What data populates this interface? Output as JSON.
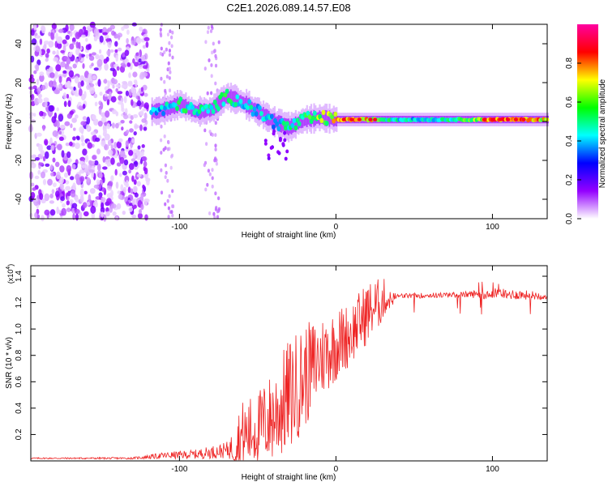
{
  "title": "C2E1.2026.089.14.57.E08",
  "chart_data": [
    {
      "type": "heatmap",
      "xlabel": "Height of straight line (km)",
      "ylabel": "Frequency (Hz)",
      "xlim": [
        -195,
        135
      ],
      "ylim": [
        -50,
        50
      ],
      "xticks": [
        -100,
        0,
        100
      ],
      "yticks": [
        -40,
        -20,
        0,
        20,
        40
      ],
      "colorbar": {
        "label": "Normalized spectral amplitude",
        "range": [
          0,
          1
        ],
        "ticks": [
          "0.0",
          "0.2",
          "0.4",
          "0.6",
          "0.8"
        ],
        "colors": [
          "#ffffff",
          "#9400ff",
          "#0000ff",
          "#00ffff",
          "#00ff00",
          "#ffff00",
          "#ff0000",
          "#ff00a0"
        ]
      },
      "noise_region_end_km": -120,
      "ridge": [
        {
          "x": -118,
          "y": 5,
          "amp": 0.45
        },
        {
          "x": -110,
          "y": 6,
          "amp": 0.5
        },
        {
          "x": -100,
          "y": 9,
          "amp": 0.6
        },
        {
          "x": -90,
          "y": 5,
          "amp": 0.55
        },
        {
          "x": -80,
          "y": 6,
          "amp": 0.55
        },
        {
          "x": -70,
          "y": 13,
          "amp": 0.6
        },
        {
          "x": -60,
          "y": 10,
          "amp": 0.55
        },
        {
          "x": -50,
          "y": 5,
          "amp": 0.5
        },
        {
          "x": -40,
          "y": 0,
          "amp": 0.5
        },
        {
          "x": -30,
          "y": -3,
          "amp": 0.55
        },
        {
          "x": -20,
          "y": 1,
          "amp": 0.65
        },
        {
          "x": -10,
          "y": 2,
          "amp": 0.7
        },
        {
          "x": 0,
          "y": 1,
          "amp": 0.85
        },
        {
          "x": 10,
          "y": 1,
          "amp": 0.9
        },
        {
          "x": 20,
          "y": 1,
          "amp": 0.85
        },
        {
          "x": 30,
          "y": 1,
          "amp": 0.6
        },
        {
          "x": 50,
          "y": 1,
          "amp": 0.5
        },
        {
          "x": 70,
          "y": 1,
          "amp": 0.55
        },
        {
          "x": 90,
          "y": 1,
          "amp": 0.75
        },
        {
          "x": 100,
          "y": 1,
          "amp": 0.9
        },
        {
          "x": 110,
          "y": 1,
          "amp": 0.95
        },
        {
          "x": 120,
          "y": 1,
          "amp": 0.9
        },
        {
          "x": 135,
          "y": 1,
          "amp": 0.8
        }
      ]
    },
    {
      "type": "line",
      "xlabel": "Height of straight line (km)",
      "ylabel": "SNR (10 * v/v)",
      "y_multiplier": "(x10",
      "y_multiplier_exp": "4",
      "xlim": [
        -195,
        135
      ],
      "ylim": [
        0,
        1.48
      ],
      "xticks": [
        -100,
        0,
        100
      ],
      "yticks": [
        "0.2",
        "0.4",
        "0.6",
        "0.8",
        "1.0",
        "1.2",
        "1.4"
      ],
      "series": [
        {
          "name": "SNR",
          "color": "#ee2222",
          "envelope": [
            {
              "x": -195,
              "base": 0.02,
              "spread": 0.01
            },
            {
              "x": -130,
              "base": 0.02,
              "spread": 0.015
            },
            {
              "x": -110,
              "base": 0.04,
              "spread": 0.05
            },
            {
              "x": -90,
              "base": 0.05,
              "spread": 0.07
            },
            {
              "x": -70,
              "base": 0.08,
              "spread": 0.12
            },
            {
              "x": -60,
              "base": 0.15,
              "spread": 0.35
            },
            {
              "x": -50,
              "base": 0.22,
              "spread": 0.35
            },
            {
              "x": -40,
              "base": 0.3,
              "spread": 0.45
            },
            {
              "x": -30,
              "base": 0.45,
              "spread": 0.55
            },
            {
              "x": -20,
              "base": 0.6,
              "spread": 0.5
            },
            {
              "x": -10,
              "base": 0.75,
              "spread": 0.4
            },
            {
              "x": 0,
              "base": 0.85,
              "spread": 0.35
            },
            {
              "x": 10,
              "base": 0.95,
              "spread": 0.3
            },
            {
              "x": 20,
              "base": 1.1,
              "spread": 0.3
            },
            {
              "x": 30,
              "base": 1.2,
              "spread": 0.22
            },
            {
              "x": 40,
              "base": 1.25,
              "spread": 0.04
            },
            {
              "x": 80,
              "base": 1.26,
              "spread": 0.04
            },
            {
              "x": 100,
              "base": 1.27,
              "spread": 0.09
            },
            {
              "x": 135,
              "base": 1.25,
              "spread": 0.06
            }
          ]
        }
      ]
    }
  ]
}
